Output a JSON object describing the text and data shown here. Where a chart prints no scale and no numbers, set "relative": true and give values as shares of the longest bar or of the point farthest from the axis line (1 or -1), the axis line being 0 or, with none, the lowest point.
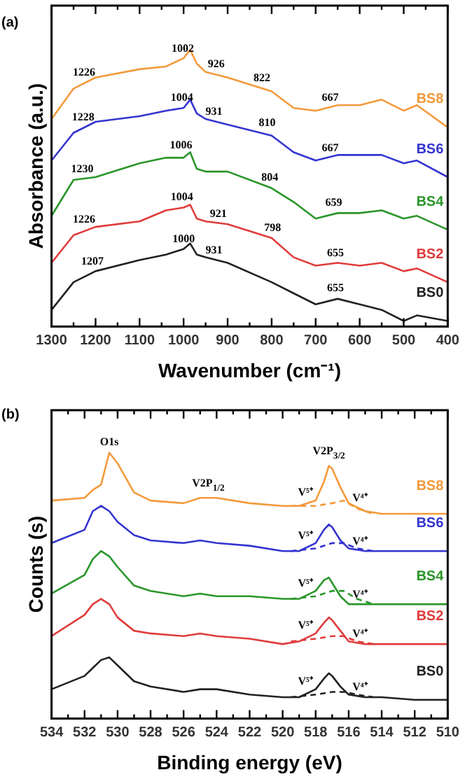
{
  "chart_data": [
    {
      "type": "line",
      "title": "(a)",
      "xlabel": "Wavenumber (cm⁻¹)",
      "ylabel": "Absorbance (a.u.)",
      "relative": true,
      "xlim": [
        1300,
        400
      ],
      "xticks": [
        1300,
        {
          "value": 1250,
          "label": null
        },
        1200,
        {
          "value": 1150,
          "label": null
        },
        1100,
        {
          "value": 1050,
          "label": null
        },
        1000,
        {
          "value": 950,
          "label": null
        },
        900,
        {
          "value": 850,
          "label": null
        },
        800,
        {
          "value": 750,
          "label": null
        },
        700,
        {
          "value": 650,
          "label": null
        },
        600,
        {
          "value": 550,
          "label": null
        },
        500,
        {
          "value": 450,
          "label": null
        },
        400
      ],
      "x": [
        1300,
        1250,
        1200,
        1100,
        1040,
        1000,
        985,
        970,
        950,
        900,
        800,
        750,
        700,
        650,
        600,
        550,
        500,
        470,
        400
      ],
      "series": [
        {
          "name": "BS8",
          "color": "#f39a3c",
          "values": [
            0.75,
            0.86,
            0.9,
            0.93,
            0.94,
            0.97,
            1,
            0.95,
            0.92,
            0.9,
            0.85,
            0.79,
            0.78,
            0.8,
            0.8,
            0.82,
            0.78,
            0.8,
            0.72
          ]
        },
        {
          "name": "BS6",
          "color": "#3535d0",
          "values": [
            0.6,
            0.7,
            0.74,
            0.76,
            0.78,
            0.79,
            0.82,
            0.77,
            0.75,
            0.73,
            0.69,
            0.63,
            0.6,
            0.62,
            0.62,
            0.62,
            0.59,
            0.6,
            0.54
          ]
        },
        {
          "name": "BS4",
          "color": "#2a962a",
          "values": [
            0.4,
            0.53,
            0.54,
            0.59,
            0.61,
            0.61,
            0.63,
            0.57,
            0.56,
            0.56,
            0.5,
            0.45,
            0.39,
            0.41,
            0.41,
            0.42,
            0.39,
            0.4,
            0.35
          ]
        },
        {
          "name": "BS2",
          "color": "#e03c3c",
          "values": [
            0.23,
            0.33,
            0.36,
            0.38,
            0.42,
            0.43,
            0.44,
            0.39,
            0.38,
            0.37,
            0.32,
            0.25,
            0.22,
            0.23,
            0.22,
            0.23,
            0.2,
            0.21,
            0.16
          ]
        },
        {
          "name": "BS0",
          "color": "#222222",
          "values": [
            0.06,
            0.16,
            0.2,
            0.24,
            0.26,
            0.28,
            0.3,
            0.26,
            0.25,
            0.23,
            0.16,
            0.12,
            0.08,
            0.1,
            0.08,
            0.06,
            0.02,
            0.04,
            0.02
          ]
        }
      ],
      "annotations": [
        {
          "text": "1226",
          "x": 1226,
          "y": 0.88
        },
        {
          "text": "1002",
          "x": 1002,
          "y": 0.97
        },
        {
          "text": "926",
          "x": 926,
          "y": 0.91
        },
        {
          "text": "822",
          "x": 822,
          "y": 0.86
        },
        {
          "text": "667",
          "x": 667,
          "y": 0.79
        },
        {
          "text": "1228",
          "x": 1228,
          "y": 0.72
        },
        {
          "text": "1004",
          "x": 1004,
          "y": 0.79
        },
        {
          "text": "931",
          "x": 931,
          "y": 0.74
        },
        {
          "text": "810",
          "x": 810,
          "y": 0.7
        },
        {
          "text": "667",
          "x": 667,
          "y": 0.61
        },
        {
          "text": "1230",
          "x": 1230,
          "y": 0.53
        },
        {
          "text": "1006",
          "x": 1006,
          "y": 0.62
        },
        {
          "text": "804",
          "x": 804,
          "y": 0.5
        },
        {
          "text": "659",
          "x": 659,
          "y": 0.41
        },
        {
          "text": "1226",
          "x": 1226,
          "y": 0.35
        },
        {
          "text": "1004",
          "x": 1004,
          "y": 0.43
        },
        {
          "text": "921",
          "x": 921,
          "y": 0.37
        },
        {
          "text": "798",
          "x": 798,
          "y": 0.32
        },
        {
          "text": "655",
          "x": 655,
          "y": 0.23
        },
        {
          "text": "1207",
          "x": 1207,
          "y": 0.2
        },
        {
          "text": "1000",
          "x": 1000,
          "y": 0.28
        },
        {
          "text": "931",
          "x": 931,
          "y": 0.24
        },
        {
          "text": "655",
          "x": 655,
          "y": 0.1
        }
      ]
    },
    {
      "type": "line",
      "title": "(b)",
      "xlabel": "Binding energy (eV)",
      "ylabel": "Counts (s)",
      "relative": true,
      "xlim": [
        534,
        510
      ],
      "xticks": [
        534,
        {
          "value": 533,
          "label": null
        },
        532,
        {
          "value": 531,
          "label": null
        },
        530,
        {
          "value": 529,
          "label": null
        },
        528,
        {
          "value": 527,
          "label": null
        },
        526,
        {
          "value": 525,
          "label": null
        },
        524,
        {
          "value": 523,
          "label": null
        },
        522,
        {
          "value": 521,
          "label": null
        },
        520,
        {
          "value": 519,
          "label": null
        },
        518,
        {
          "value": 517,
          "label": null
        },
        516,
        {
          "value": 515,
          "label": null
        },
        514,
        {
          "value": 513,
          "label": null
        },
        512,
        {
          "value": 511,
          "label": null
        },
        510
      ],
      "x": [
        534,
        532,
        531.5,
        531,
        530.5,
        530,
        529,
        528,
        526,
        525,
        524,
        522,
        520,
        519,
        518,
        517.5,
        517.2,
        517,
        516.5,
        516,
        515,
        514,
        512,
        510
      ],
      "series": [
        {
          "name": "BS8",
          "color": "#f39a3c",
          "values": [
            0.82,
            0.83,
            0.86,
            0.88,
            1.0,
            0.96,
            0.85,
            0.82,
            0.81,
            0.83,
            0.83,
            0.81,
            0.8,
            0.8,
            0.82,
            0.89,
            0.95,
            0.94,
            0.87,
            0.81,
            0.78,
            0.77,
            0.77,
            0.77
          ]
        },
        {
          "name": "BS6",
          "color": "#3535d0",
          "values": [
            0.66,
            0.71,
            0.78,
            0.8,
            0.78,
            0.74,
            0.69,
            0.67,
            0.66,
            0.67,
            0.66,
            0.65,
            0.63,
            0.63,
            0.66,
            0.71,
            0.73,
            0.72,
            0.67,
            0.64,
            0.63,
            0.63,
            0.63,
            0.63
          ]
        },
        {
          "name": "BS4",
          "color": "#2a962a",
          "values": [
            0.47,
            0.54,
            0.6,
            0.63,
            0.61,
            0.57,
            0.5,
            0.48,
            0.46,
            0.47,
            0.46,
            0.46,
            0.45,
            0.45,
            0.48,
            0.52,
            0.53,
            0.51,
            0.46,
            0.43,
            0.43,
            0.43,
            0.43,
            0.43
          ]
        },
        {
          "name": "BS2",
          "color": "#e03c3c",
          "values": [
            0.31,
            0.39,
            0.43,
            0.45,
            0.43,
            0.38,
            0.33,
            0.32,
            0.31,
            0.32,
            0.31,
            0.3,
            0.28,
            0.29,
            0.32,
            0.36,
            0.38,
            0.37,
            0.33,
            0.29,
            0.28,
            0.28,
            0.28,
            0.28
          ]
        },
        {
          "name": "BS0",
          "color": "#222222",
          "values": [
            0.11,
            0.16,
            0.19,
            0.22,
            0.23,
            0.2,
            0.14,
            0.12,
            0.1,
            0.11,
            0.11,
            0.09,
            0.08,
            0.08,
            0.11,
            0.15,
            0.17,
            0.16,
            0.12,
            0.09,
            0.08,
            0.08,
            0.07,
            0.07
          ]
        },
        {
          "color": "#f39a3c",
          "line_style": "dashed",
          "x": [
            519.5,
            518,
            517,
            516.3,
            515.5,
            514.5
          ],
          "values": [
            0.8,
            0.8,
            0.81,
            0.82,
            0.79,
            0.77
          ]
        },
        {
          "color": "#3535d0",
          "line_style": "dashed",
          "x": [
            519.5,
            518,
            517,
            516.3,
            515.5,
            514.5
          ],
          "values": [
            0.63,
            0.64,
            0.66,
            0.66,
            0.64,
            0.63
          ]
        },
        {
          "color": "#2a962a",
          "line_style": "dashed",
          "x": [
            519.5,
            518,
            517,
            516.3,
            515.5,
            514.5
          ],
          "values": [
            0.45,
            0.46,
            0.48,
            0.48,
            0.45,
            0.43
          ]
        },
        {
          "color": "#e03c3c",
          "line_style": "dashed",
          "x": [
            519.5,
            518,
            517,
            516.3,
            515.5,
            514.5
          ],
          "values": [
            0.29,
            0.3,
            0.31,
            0.31,
            0.29,
            0.28
          ]
        },
        {
          "color": "#222222",
          "line_style": "dashed",
          "x": [
            519.5,
            518,
            517,
            516.3,
            515.5,
            514.5
          ],
          "values": [
            0.08,
            0.09,
            0.1,
            0.1,
            0.09,
            0.08
          ]
        }
      ],
      "annotations": [
        {
          "text": "O1s",
          "x": 530.5,
          "y": 1.0
        },
        {
          "text": "V2P$_{1/2}$",
          "x": 524.5,
          "y": 0.83
        },
        {
          "text": "V2P$_{3/2}$",
          "x": 517.2,
          "y": 0.95
        },
        {
          "text": "V⁵⁺",
          "x": 518.6,
          "y": 0.81
        },
        {
          "text": "V⁴⁺",
          "x": 515.3,
          "y": 0.79
        },
        {
          "text": "V⁵⁺",
          "x": 518.6,
          "y": 0.65
        },
        {
          "text": "V⁴⁺",
          "x": 515.3,
          "y": 0.63
        },
        {
          "text": "V⁵⁺",
          "x": 518.6,
          "y": 0.47
        },
        {
          "text": "V⁴⁺",
          "x": 515.3,
          "y": 0.43
        },
        {
          "text": "V⁵⁺",
          "x": 518.6,
          "y": 0.31
        },
        {
          "text": "V⁴⁺",
          "x": 515.3,
          "y": 0.28
        },
        {
          "text": "V⁵⁺",
          "x": 518.6,
          "y": 0.1
        },
        {
          "text": "V⁴⁺",
          "x": 515.3,
          "y": 0.08
        }
      ]
    }
  ]
}
